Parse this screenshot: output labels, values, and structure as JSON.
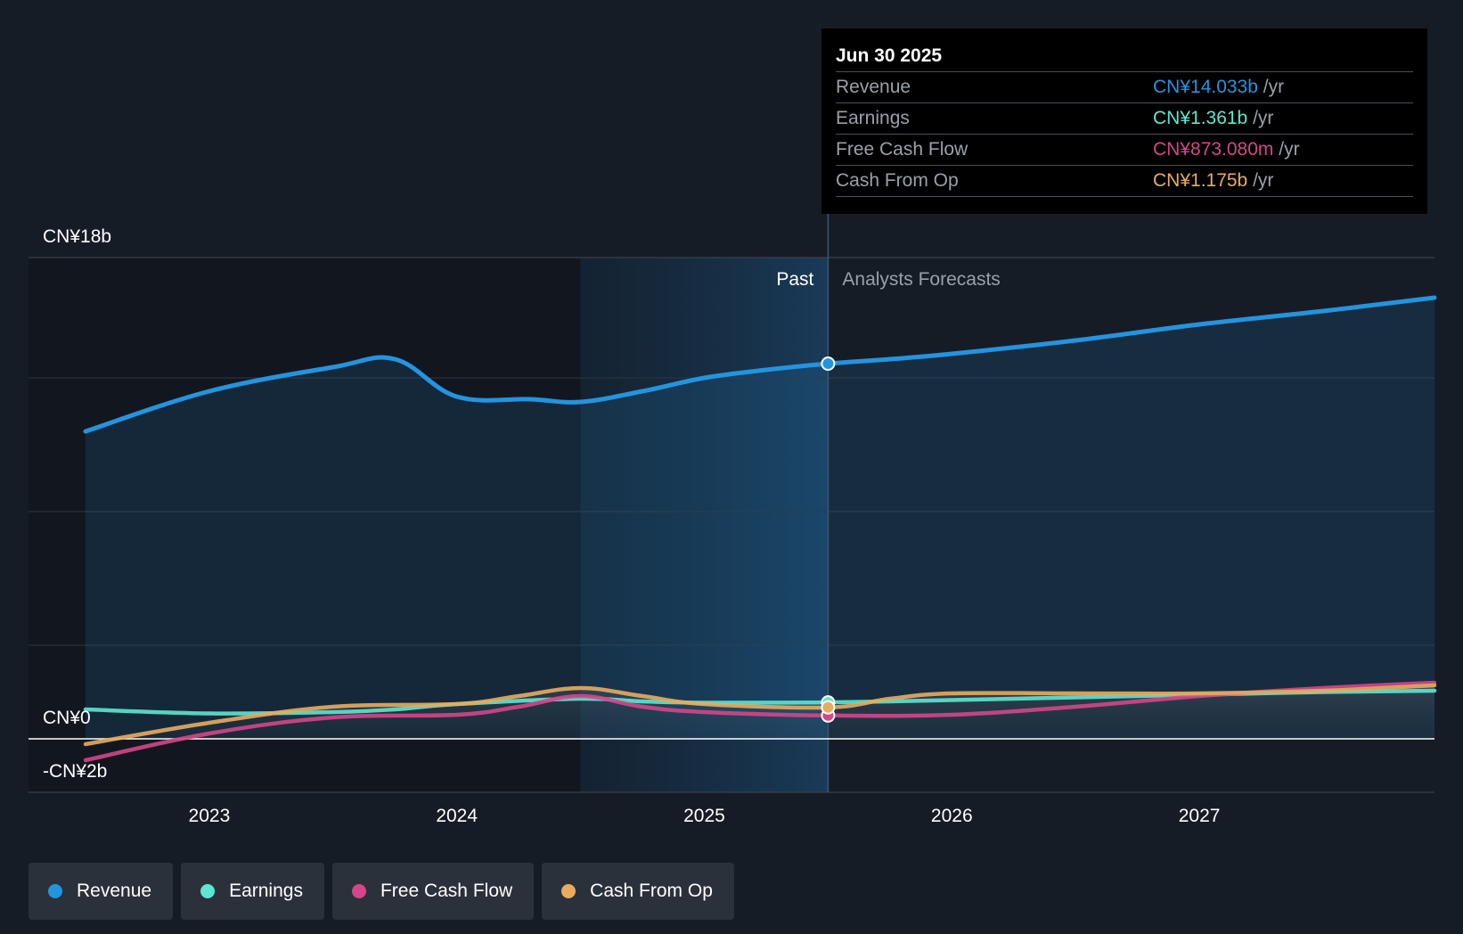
{
  "chart_data": {
    "type": "area",
    "title": "",
    "y_axis": {
      "labels": [
        "CN¥18b",
        "CN¥0",
        "-CN¥2b"
      ],
      "ylim": [
        -2,
        18
      ],
      "unit": "CN¥ billions"
    },
    "x_axis": {
      "tick_labels": [
        "2023",
        "2024",
        "2025",
        "2026",
        "2027"
      ],
      "range": [
        2022.5,
        2027.95
      ]
    },
    "past_label": "Past",
    "forecast_label": "Analysts Forecasts",
    "divider_x": 2025.5,
    "shade_start_x": 2024.5,
    "series": [
      {
        "name": "Revenue",
        "color": "#2394df",
        "fill": true,
        "points": [
          [
            2022.5,
            11.5
          ],
          [
            2023.0,
            13.0
          ],
          [
            2023.5,
            13.9
          ],
          [
            2023.75,
            14.2
          ],
          [
            2024.0,
            12.8
          ],
          [
            2024.3,
            12.7
          ],
          [
            2024.5,
            12.6
          ],
          [
            2024.75,
            13.0
          ],
          [
            2025.0,
            13.5
          ],
          [
            2025.25,
            13.8
          ],
          [
            2025.5,
            14.033
          ],
          [
            2025.75,
            14.2
          ],
          [
            2026.0,
            14.4
          ],
          [
            2026.5,
            14.9
          ],
          [
            2027.0,
            15.5
          ],
          [
            2027.5,
            16.0
          ],
          [
            2027.95,
            16.5
          ]
        ]
      },
      {
        "name": "Earnings",
        "color": "#5ee6d2",
        "fill": false,
        "points": [
          [
            2022.5,
            1.1
          ],
          [
            2023.0,
            0.95
          ],
          [
            2023.5,
            1.0
          ],
          [
            2023.75,
            1.1
          ],
          [
            2024.0,
            1.3
          ],
          [
            2024.5,
            1.5
          ],
          [
            2024.75,
            1.4
          ],
          [
            2025.0,
            1.35
          ],
          [
            2025.5,
            1.361
          ],
          [
            2026.0,
            1.45
          ],
          [
            2026.5,
            1.55
          ],
          [
            2027.0,
            1.65
          ],
          [
            2027.5,
            1.75
          ],
          [
            2027.95,
            1.8
          ]
        ]
      },
      {
        "name": "Free Cash Flow",
        "color": "#d4468a",
        "fill": false,
        "points": [
          [
            2022.5,
            -0.8
          ],
          [
            2023.0,
            0.2
          ],
          [
            2023.5,
            0.8
          ],
          [
            2024.0,
            0.9
          ],
          [
            2024.25,
            1.2
          ],
          [
            2024.5,
            1.6
          ],
          [
            2024.75,
            1.2
          ],
          [
            2025.0,
            1.0
          ],
          [
            2025.5,
            0.873
          ],
          [
            2026.0,
            0.9
          ],
          [
            2026.5,
            1.2
          ],
          [
            2027.0,
            1.6
          ],
          [
            2027.5,
            1.9
          ],
          [
            2027.95,
            2.1
          ]
        ]
      },
      {
        "name": "Cash From Op",
        "color": "#e8ac5e",
        "fill": false,
        "points": [
          [
            2022.5,
            -0.2
          ],
          [
            2023.0,
            0.6
          ],
          [
            2023.5,
            1.2
          ],
          [
            2024.0,
            1.3
          ],
          [
            2024.25,
            1.6
          ],
          [
            2024.5,
            1.9
          ],
          [
            2024.75,
            1.6
          ],
          [
            2025.0,
            1.3
          ],
          [
            2025.5,
            1.175
          ],
          [
            2025.75,
            1.5
          ],
          [
            2026.0,
            1.7
          ],
          [
            2026.5,
            1.7
          ],
          [
            2027.0,
            1.7
          ],
          [
            2027.5,
            1.8
          ],
          [
            2027.95,
            2.0
          ]
        ]
      }
    ]
  },
  "tooltip": {
    "date": "Jun 30 2025",
    "rows": [
      {
        "label": "Revenue",
        "value": "CN¥14.033b",
        "unit": "/yr",
        "color": "#2394df"
      },
      {
        "label": "Earnings",
        "value": "CN¥1.361b",
        "unit": "/yr",
        "color": "#5ee6d2"
      },
      {
        "label": "Free Cash Flow",
        "value": "CN¥873.080m",
        "unit": "/yr",
        "color": "#d4468a"
      },
      {
        "label": "Cash From Op",
        "value": "CN¥1.175b",
        "unit": "/yr",
        "color": "#e8ac5e"
      }
    ]
  },
  "legend": [
    {
      "label": "Revenue",
      "color": "#2394df"
    },
    {
      "label": "Earnings",
      "color": "#5ee6d2"
    },
    {
      "label": "Free Cash Flow",
      "color": "#d4468a"
    },
    {
      "label": "Cash From Op",
      "color": "#e8ac5e"
    }
  ]
}
